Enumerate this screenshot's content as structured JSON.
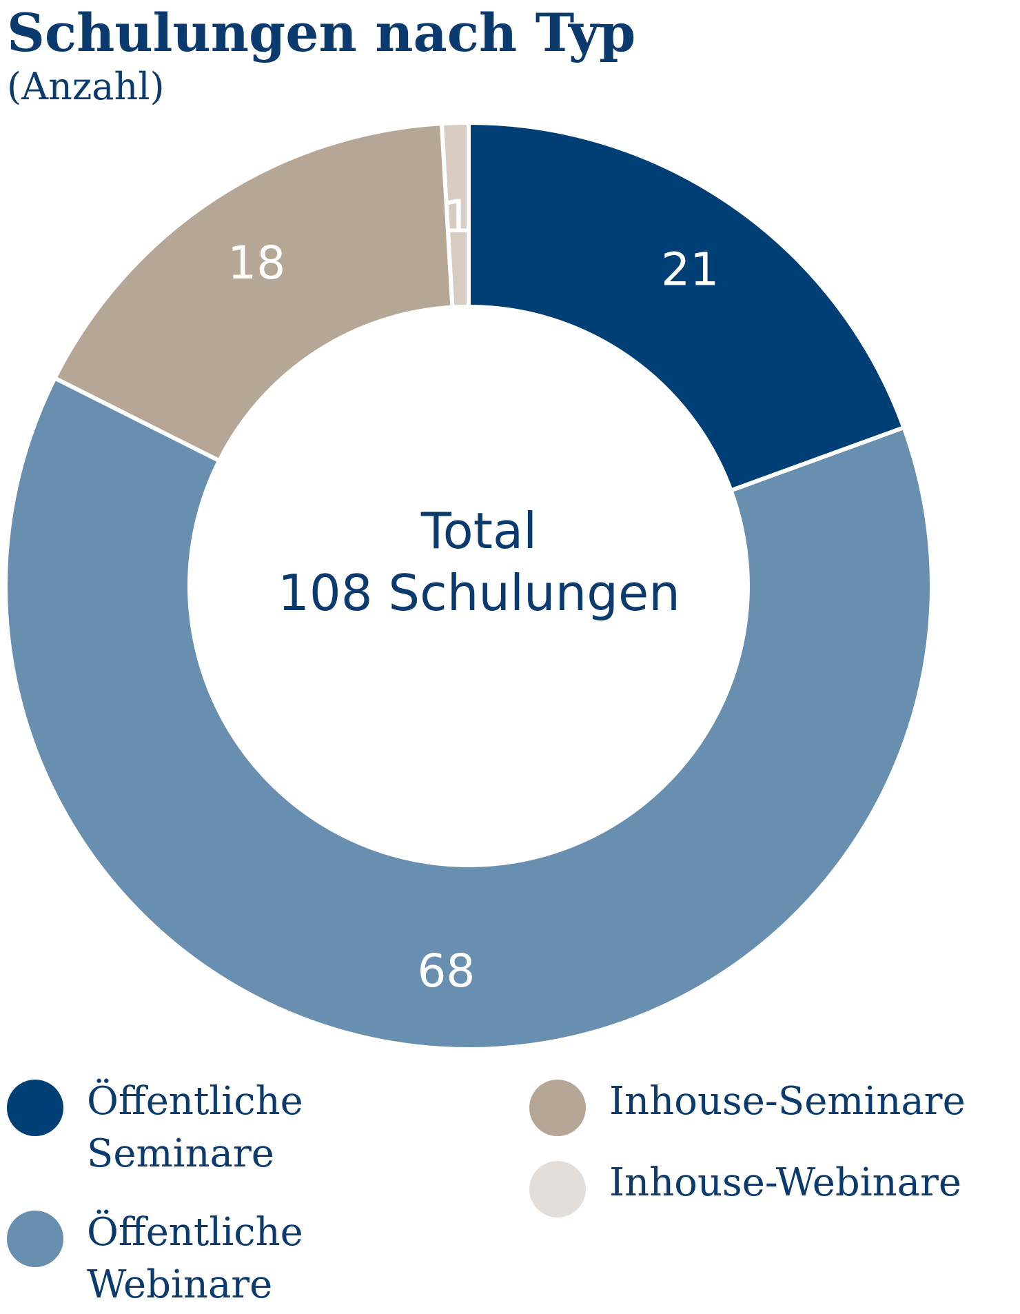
{
  "title": "Schulungen nach Typ",
  "subtitle": "(Anzahl)",
  "center": {
    "line1": "Total",
    "line2": "108 Schulungen"
  },
  "chart_data": {
    "type": "pie",
    "donut": true,
    "title": "Schulungen nach Typ",
    "subtitle": "(Anzahl)",
    "total": 108,
    "slices": [
      {
        "label": "Öffentliche Seminare",
        "value": 21,
        "color": "#003f75"
      },
      {
        "label": "Öffentliche Webinare",
        "value": 68,
        "color": "#688faf"
      },
      {
        "label": "Inhouse-Seminare",
        "value": 18,
        "color": "#b5a696"
      },
      {
        "label": "Inhouse-Webinare",
        "value": 1,
        "color": "#d6ccc2"
      }
    ],
    "data_labels": [
      "21",
      "68",
      "18",
      "1"
    ],
    "legend_position": "bottom"
  },
  "legend": [
    {
      "text": "Öffentliche\nSeminare",
      "color": "#003f75"
    },
    {
      "text": "Öffentliche\nWebinare",
      "color": "#688faf"
    },
    {
      "text": "Inhouse-Seminare",
      "color": "#b5a696"
    },
    {
      "text": "Inhouse-Webinare",
      "color": "#e3ded9"
    }
  ]
}
